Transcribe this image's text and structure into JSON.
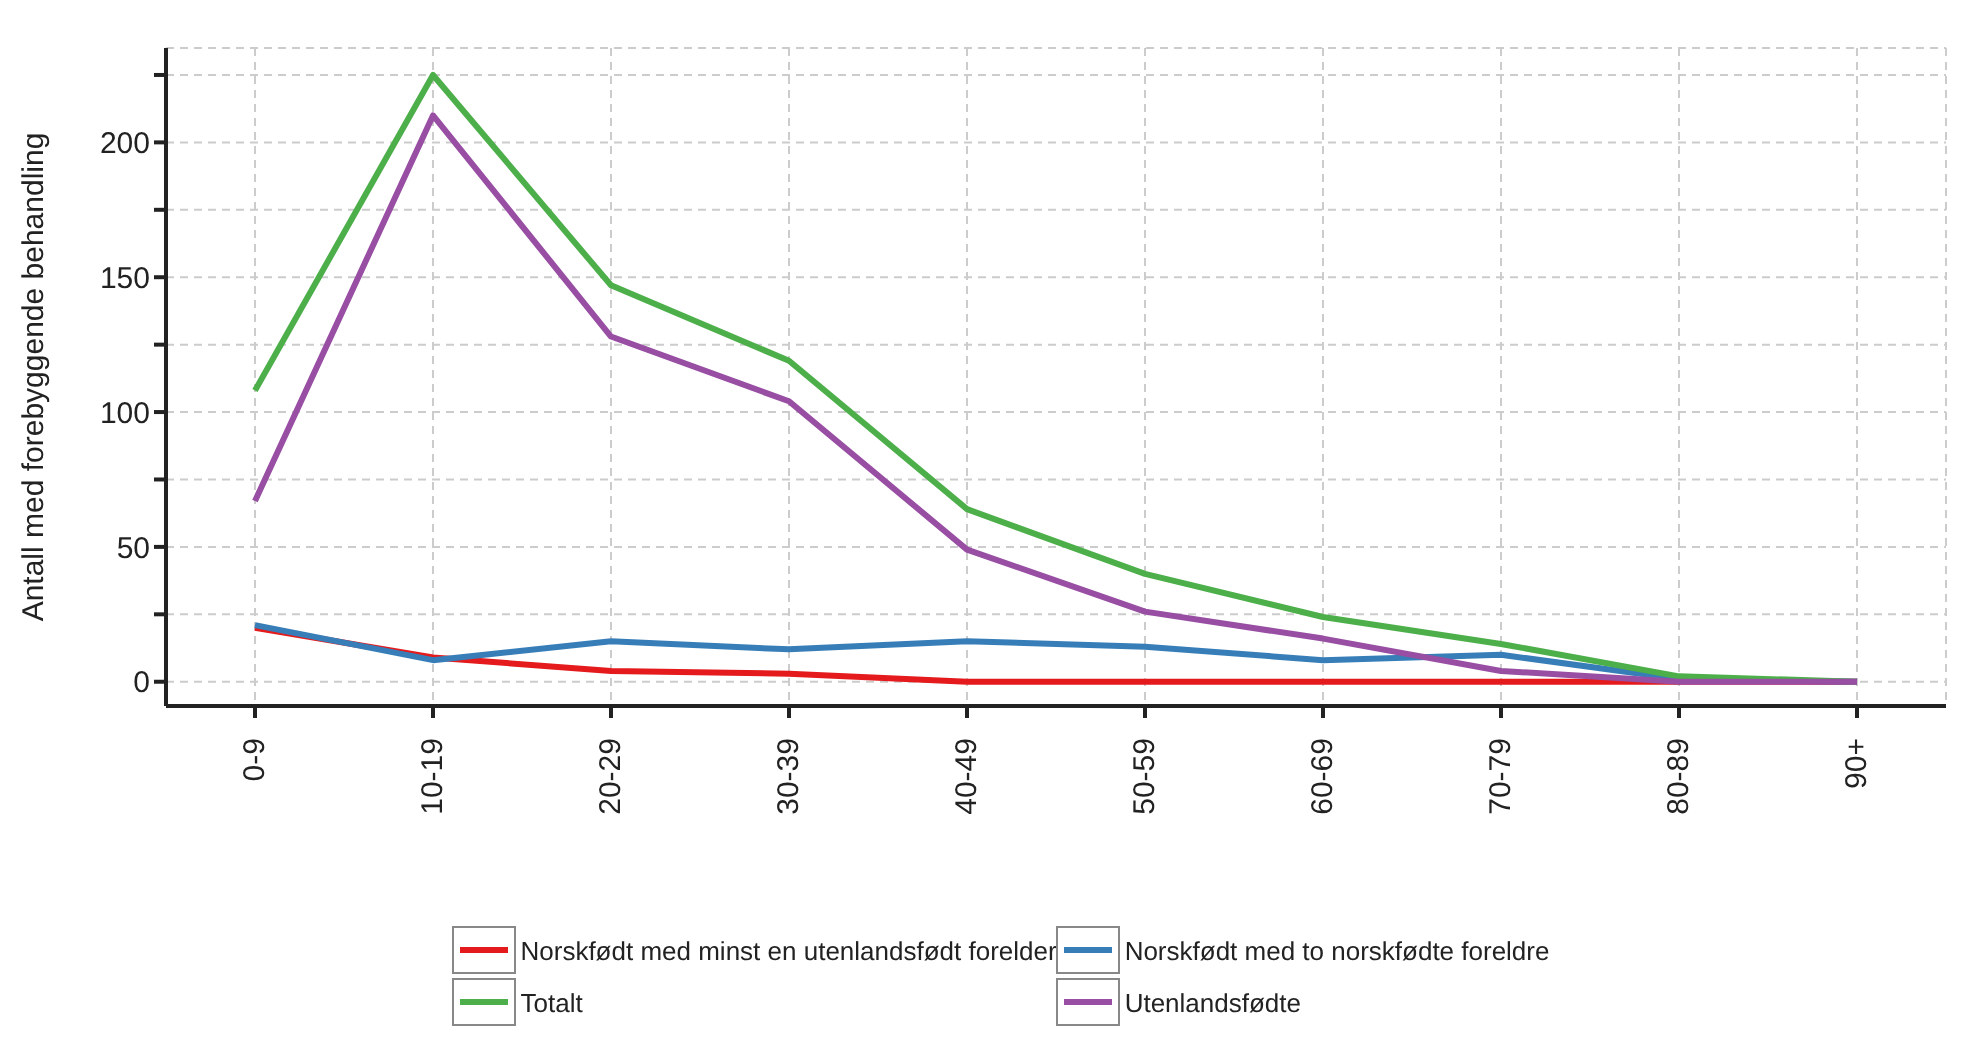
{
  "chart_data": {
    "type": "line",
    "ylabel": "Antall med forebyggende behandling",
    "categories": [
      "0-9",
      "10-19",
      "20-29",
      "30-39",
      "40-49",
      "50-59",
      "60-69",
      "70-79",
      "80-89",
      "90+"
    ],
    "series": [
      {
        "name": "Norskfødt med minst en utenlandsfødt forelder",
        "color": "#e41a1c",
        "values": [
          20,
          9,
          4,
          3,
          0,
          0,
          0,
          0,
          0,
          0
        ]
      },
      {
        "name": "Norskfødt med to norskfødte foreldre",
        "color": "#377eb8",
        "values": [
          21,
          8,
          15,
          12,
          15,
          13,
          8,
          10,
          1,
          0
        ]
      },
      {
        "name": "Totalt",
        "color": "#4daf4a",
        "values": [
          108,
          225,
          147,
          119,
          64,
          40,
          24,
          14,
          2,
          0
        ]
      },
      {
        "name": "Utenlandsfødte",
        "color": "#984ea3",
        "values": [
          67,
          210,
          128,
          104,
          49,
          26,
          16,
          4,
          0,
          0
        ]
      }
    ],
    "ylim": [
      -9,
      235
    ],
    "yticks": [
      0,
      {
        "value": 25,
        "label": null
      },
      50,
      {
        "value": 75,
        "label": null
      },
      100,
      {
        "value": 125,
        "label": null
      },
      150,
      {
        "value": 175,
        "label": null
      },
      200,
      {
        "value": 225,
        "label": null
      }
    ],
    "grid": true,
    "legend": "bottom",
    "marker": "none",
    "line_style": "solid"
  }
}
